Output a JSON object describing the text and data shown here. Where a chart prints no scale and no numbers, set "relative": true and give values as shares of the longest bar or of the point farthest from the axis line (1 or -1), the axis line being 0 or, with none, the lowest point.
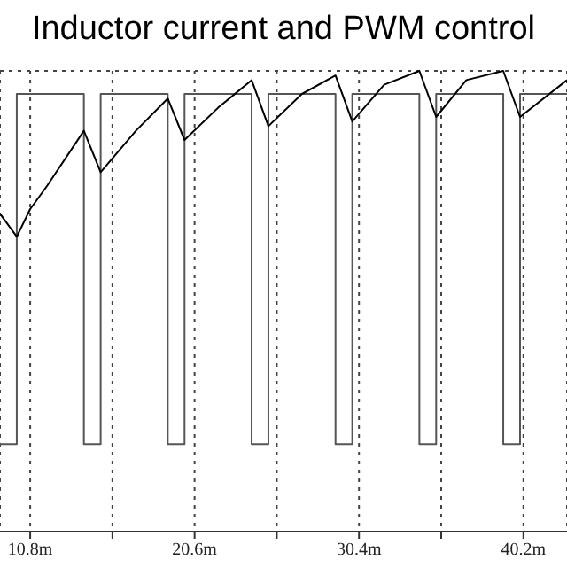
{
  "chart_data": {
    "type": "line",
    "title": "Inductor current and PWM control",
    "relative": true,
    "marker": "none",
    "grid": true,
    "xlim": [
      9,
      42.8
    ],
    "xticks": [
      {
        "value": 10.8,
        "label": "10.8m"
      },
      {
        "value": 15.7,
        "label": null
      },
      {
        "value": 20.6,
        "label": "20.6m"
      },
      {
        "value": 25.5,
        "label": null
      },
      {
        "value": 30.4,
        "label": "30.4m"
      },
      {
        "value": 35.3,
        "label": null
      },
      {
        "value": 40.2,
        "label": "40.2m"
      }
    ],
    "series": [
      {
        "type": "step",
        "color": "#555555",
        "x": [
          9,
          10,
          14,
          15,
          19,
          20,
          24,
          25,
          29,
          30,
          34,
          35,
          39,
          40,
          42.8
        ],
        "values": [
          0.19,
          0.95,
          0.19,
          0.95,
          0.19,
          0.95,
          0.19,
          0.95,
          0.19,
          0.95,
          0.19,
          0.95,
          0.19,
          0.95,
          0.95
        ]
      },
      {
        "type": "line",
        "color": "#000000",
        "x": [
          9,
          10,
          10.8,
          11.8,
          14,
          15,
          17.1,
          19,
          20,
          22,
          24,
          25,
          27,
          29,
          30,
          31.9,
          34,
          35,
          36.8,
          39,
          40,
          42.8
        ],
        "values": [
          0.69,
          0.64,
          0.7,
          0.75,
          0.87,
          0.78,
          0.87,
          0.94,
          0.85,
          0.92,
          0.98,
          0.88,
          0.95,
          0.99,
          0.89,
          0.97,
          1,
          0.9,
          0.98,
          1,
          0.9,
          0.98
        ]
      }
    ]
  }
}
